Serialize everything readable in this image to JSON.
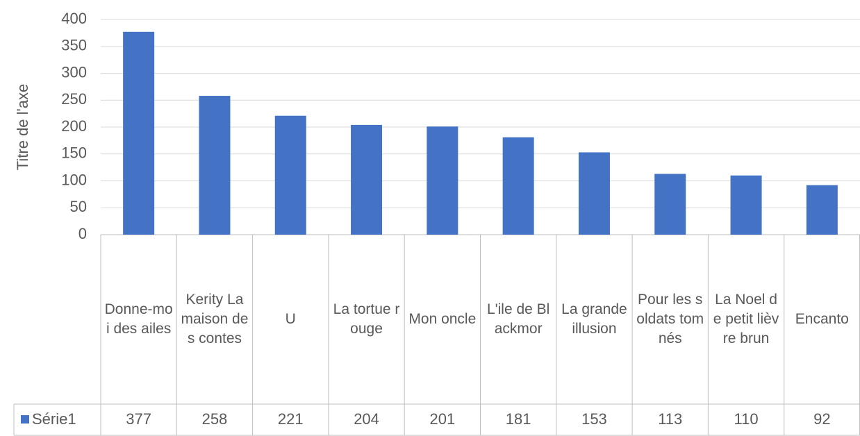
{
  "chart_data": {
    "type": "bar",
    "y_axis_label": "Titre de l'axe",
    "categories": [
      "Donne-moi des ailes",
      "Kerity La maison des contes",
      "U",
      "La tortue rouge",
      "Mon oncle",
      "L'ile de Blackmor",
      "La grande illusion",
      "Pour les soldats tomnés",
      "La Noel de petit lièvre brun",
      "Encanto"
    ],
    "series": [
      {
        "name": "Série1",
        "color": "#4472c4",
        "values": [
          377,
          258,
          221,
          204,
          201,
          181,
          153,
          113,
          110,
          92
        ]
      }
    ],
    "ylim": [
      0,
      400
    ],
    "yticks": [
      0,
      50,
      100,
      150,
      200,
      250,
      300,
      350,
      400
    ],
    "grid": true
  }
}
